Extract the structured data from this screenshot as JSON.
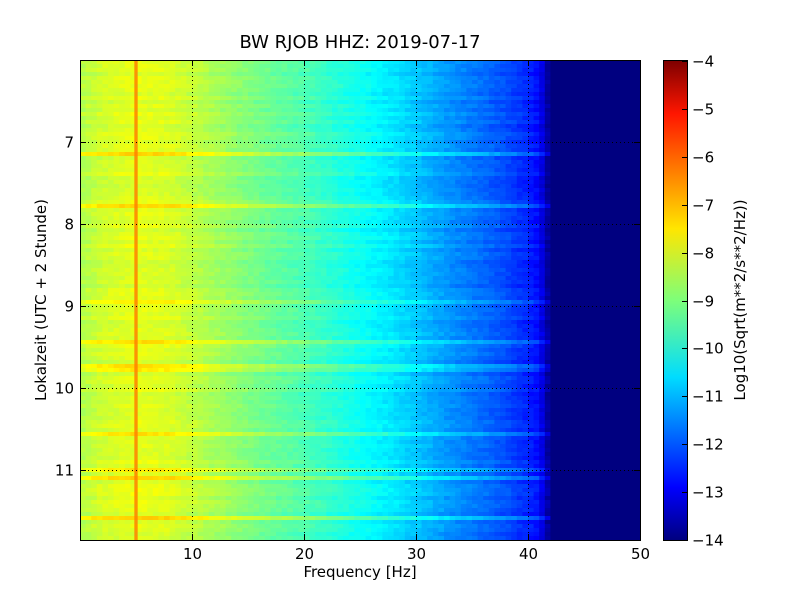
{
  "chart_data": {
    "type": "heatmap",
    "title": "BW RJOB HHZ: 2019-07-17",
    "xlabel": "Frequency [Hz]",
    "ylabel": "Lokalzeit (UTC + 2 Stunde)",
    "colorbar_label": "Log10(Sqrt(m**2/s**2/Hz))",
    "xlim": [
      0,
      50
    ],
    "ylim": [
      6.0,
      11.85
    ],
    "y_inverted": true,
    "x_ticks": [
      10,
      20,
      30,
      40,
      50
    ],
    "x_tick_labels": [
      "10",
      "20",
      "30",
      "40",
      "50"
    ],
    "y_ticks": [
      7,
      8,
      9,
      10,
      11
    ],
    "y_tick_labels": [
      "7",
      "8",
      "9",
      "10",
      "11"
    ],
    "colorbar_range": [
      -14,
      -4
    ],
    "colorbar_ticks": [
      -4,
      -5,
      -6,
      -7,
      -8,
      -9,
      -10,
      -11,
      -12,
      -13,
      -14
    ],
    "colorbar_tick_labels": [
      "−4",
      "−5",
      "−6",
      "−7",
      "−8",
      "−9",
      "−10",
      "−11",
      "−12",
      "−13",
      "−14"
    ],
    "colormap": "jet",
    "grid": true,
    "spectral_profile": {
      "frequency_hz": [
        0,
        2,
        5,
        8,
        12,
        16,
        20,
        24,
        28,
        30,
        33,
        36,
        38,
        40,
        41,
        42,
        44,
        50
      ],
      "log10_amplitude": [
        -8.5,
        -8.2,
        -8.0,
        -8.1,
        -8.6,
        -9.1,
        -9.5,
        -10.0,
        -10.5,
        -10.8,
        -11.3,
        -11.7,
        -12.0,
        -12.4,
        -12.7,
        -14.0,
        -14.0,
        -14.0
      ]
    },
    "line_feature": {
      "frequency_hz": 5.0,
      "log10_amplitude": -6.5
    },
    "colors": {
      "jet_stops": [
        "#00007f",
        "#0000ff",
        "#007fff",
        "#00ffff",
        "#7fff7f",
        "#ffff00",
        "#ff7f00",
        "#ff0000",
        "#7f0000"
      ]
    }
  }
}
